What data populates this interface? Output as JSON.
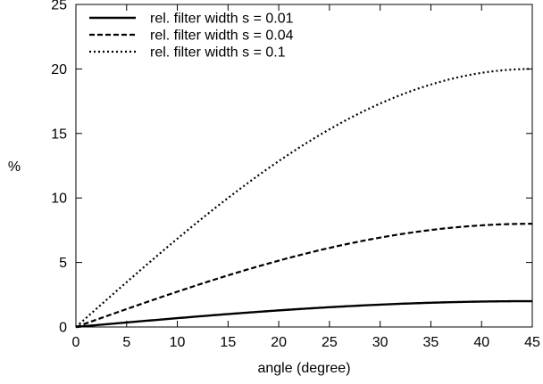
{
  "chart_data": {
    "type": "line",
    "title": "",
    "xlabel": "angle (degree)",
    "ylabel": "%",
    "xlim": [
      0,
      45
    ],
    "ylim": [
      0,
      25
    ],
    "xticks": [
      0,
      5,
      10,
      15,
      20,
      25,
      30,
      35,
      40,
      45
    ],
    "yticks": [
      0,
      5,
      10,
      15,
      20,
      25
    ],
    "grid": false,
    "legend_position": "top-left",
    "x": [
      0,
      5,
      10,
      15,
      20,
      25,
      30,
      35,
      40,
      45
    ],
    "series": [
      {
        "name": "rel. filter width s = 0.01",
        "line_style": "solid",
        "color": "#000000",
        "values": [
          0,
          0.35,
          0.68,
          1.0,
          1.29,
          1.53,
          1.73,
          1.88,
          1.97,
          2.0
        ]
      },
      {
        "name": "rel. filter width s = 0.04",
        "line_style": "dashed",
        "color": "#000000",
        "values": [
          0,
          1.39,
          2.74,
          4.0,
          5.14,
          6.13,
          6.93,
          7.52,
          7.88,
          8.0
        ]
      },
      {
        "name": "rel. filter width s = 0.1",
        "line_style": "dotted",
        "color": "#000000",
        "values": [
          0,
          3.47,
          6.84,
          10.0,
          12.86,
          15.32,
          17.32,
          18.79,
          19.7,
          20.0
        ]
      }
    ]
  }
}
